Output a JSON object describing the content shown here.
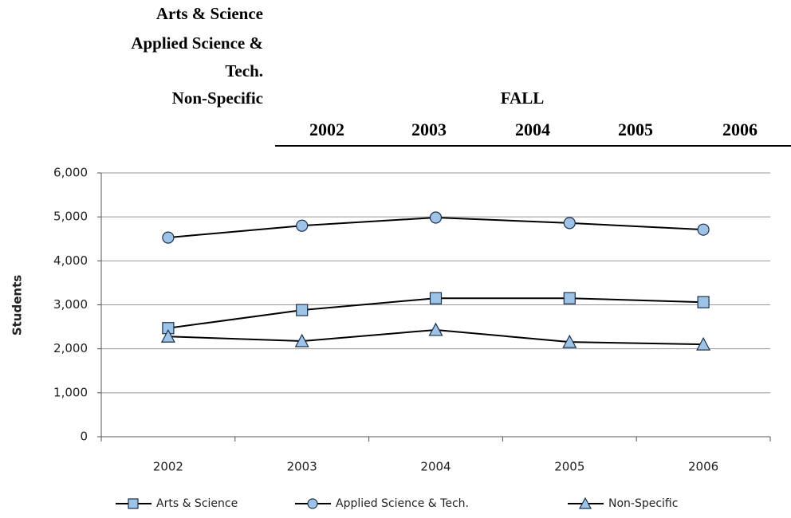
{
  "header": {
    "row_labels": [
      "Arts & Science",
      "Applied Science & Tech.",
      "Non-Specific"
    ],
    "group_title": "FALL",
    "years": [
      "2002",
      "2003",
      "2004",
      "2005",
      "2006"
    ]
  },
  "chart_data": {
    "type": "line",
    "ylabel": "Students",
    "categories": [
      "2002",
      "2003",
      "2004",
      "2005",
      "2006"
    ],
    "series": [
      {
        "name": "Arts & Science",
        "color": "#000000",
        "marker": "square",
        "marker_fill": "#9dc3e6",
        "values": [
          2470,
          2880,
          3150,
          3150,
          3060
        ]
      },
      {
        "name": "Applied Science & Tech.",
        "color": "#000000",
        "marker": "circle",
        "marker_fill": "#9dc3e6",
        "values": [
          4530,
          4800,
          4985,
          4860,
          4710
        ]
      },
      {
        "name": "Non-Specific",
        "color": "#000000",
        "marker": "triangle",
        "marker_fill": "#9dc3e6",
        "values": [
          2280,
          2175,
          2430,
          2155,
          2100
        ]
      }
    ],
    "ylim": [
      0,
      6000
    ],
    "yticks": [
      0,
      {
        "value": 1000,
        "label": "1,000"
      },
      {
        "value": 2000,
        "label": "2,000"
      },
      {
        "value": 3000,
        "label": "3,000"
      },
      {
        "value": 4000,
        "label": "4,000"
      },
      {
        "value": 5000,
        "label": "5,000"
      },
      {
        "value": 6000,
        "label": "6,000"
      }
    ],
    "grid": true,
    "legend": "bottom"
  }
}
